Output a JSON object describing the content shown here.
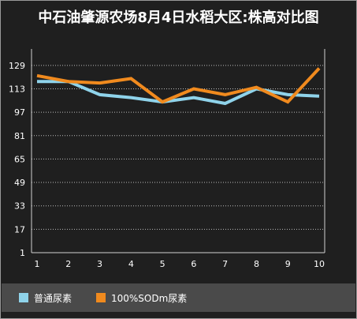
{
  "title": "中石油肇源农场8月4日水稻大区:株高对比图",
  "colors": {
    "background": "#1f1f1f",
    "series1": "#8fd3ea",
    "series2": "#f08a1e",
    "grid": "#bdbdbd",
    "legend_bg": "#4a4a4a"
  },
  "chart_data": {
    "type": "line",
    "x": [
      1,
      2,
      3,
      4,
      5,
      6,
      7,
      8,
      9,
      10
    ],
    "y_ticks": [
      1,
      17,
      33,
      49,
      65,
      81,
      97,
      113,
      129
    ],
    "ylim": [
      1,
      137
    ],
    "grid": "dotted horizontal",
    "legend_placement": "bottom",
    "series": [
      {
        "name": "普通尿素",
        "color": "#8fd3ea",
        "values": [
          118,
          118,
          109,
          107,
          104,
          107,
          103,
          113,
          109,
          108
        ]
      },
      {
        "name": "100%SODm尿素",
        "color": "#f08a1e",
        "values": [
          122,
          118,
          117,
          120,
          104,
          113,
          109,
          114,
          104,
          127
        ]
      }
    ]
  }
}
